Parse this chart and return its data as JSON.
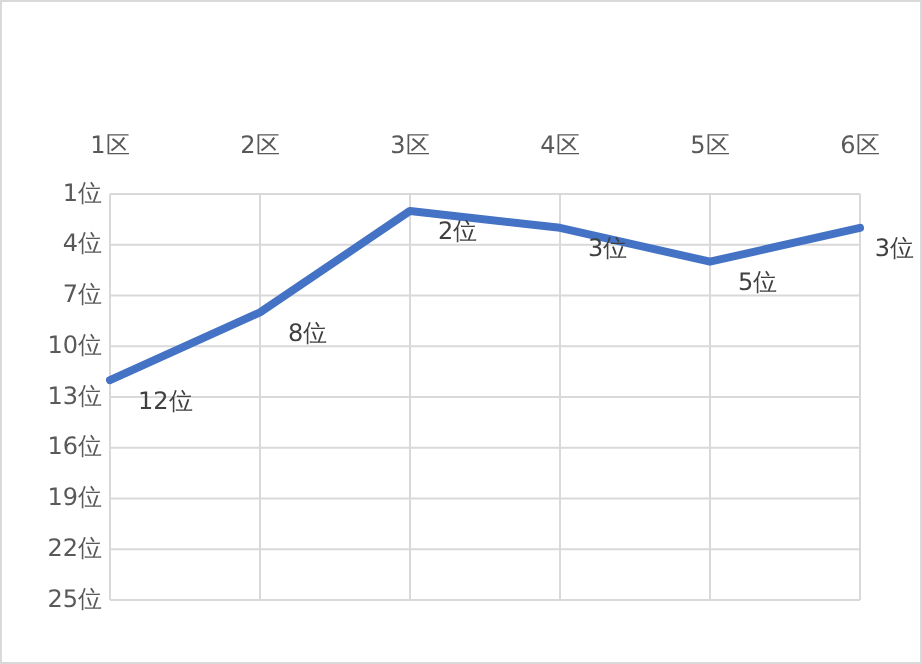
{
  "chart_data": {
    "type": "line",
    "categories": [
      "1区",
      "2区",
      "3区",
      "4区",
      "5区",
      "6区"
    ],
    "series": [
      {
        "color": "#4472c4",
        "values": [
          12,
          8,
          2,
          3,
          5,
          3
        ],
        "value_labels": [
          "12位",
          "8位",
          "2位",
          "3位",
          "5位",
          "3位"
        ]
      }
    ],
    "ylim": [
      25,
      1
    ],
    "yticks": [
      {
        "value": 1,
        "label": "1位"
      },
      {
        "value": 4,
        "label": "4位"
      },
      {
        "value": 7,
        "label": "7位"
      },
      {
        "value": 10,
        "label": "10位"
      },
      {
        "value": 13,
        "label": "13位"
      },
      {
        "value": 16,
        "label": "16位"
      },
      {
        "value": 19,
        "label": "19位"
      },
      {
        "value": 22,
        "label": "22位"
      },
      {
        "value": 25,
        "label": "25位"
      }
    ],
    "grid": true,
    "marker": "none",
    "line_style": "solid"
  }
}
